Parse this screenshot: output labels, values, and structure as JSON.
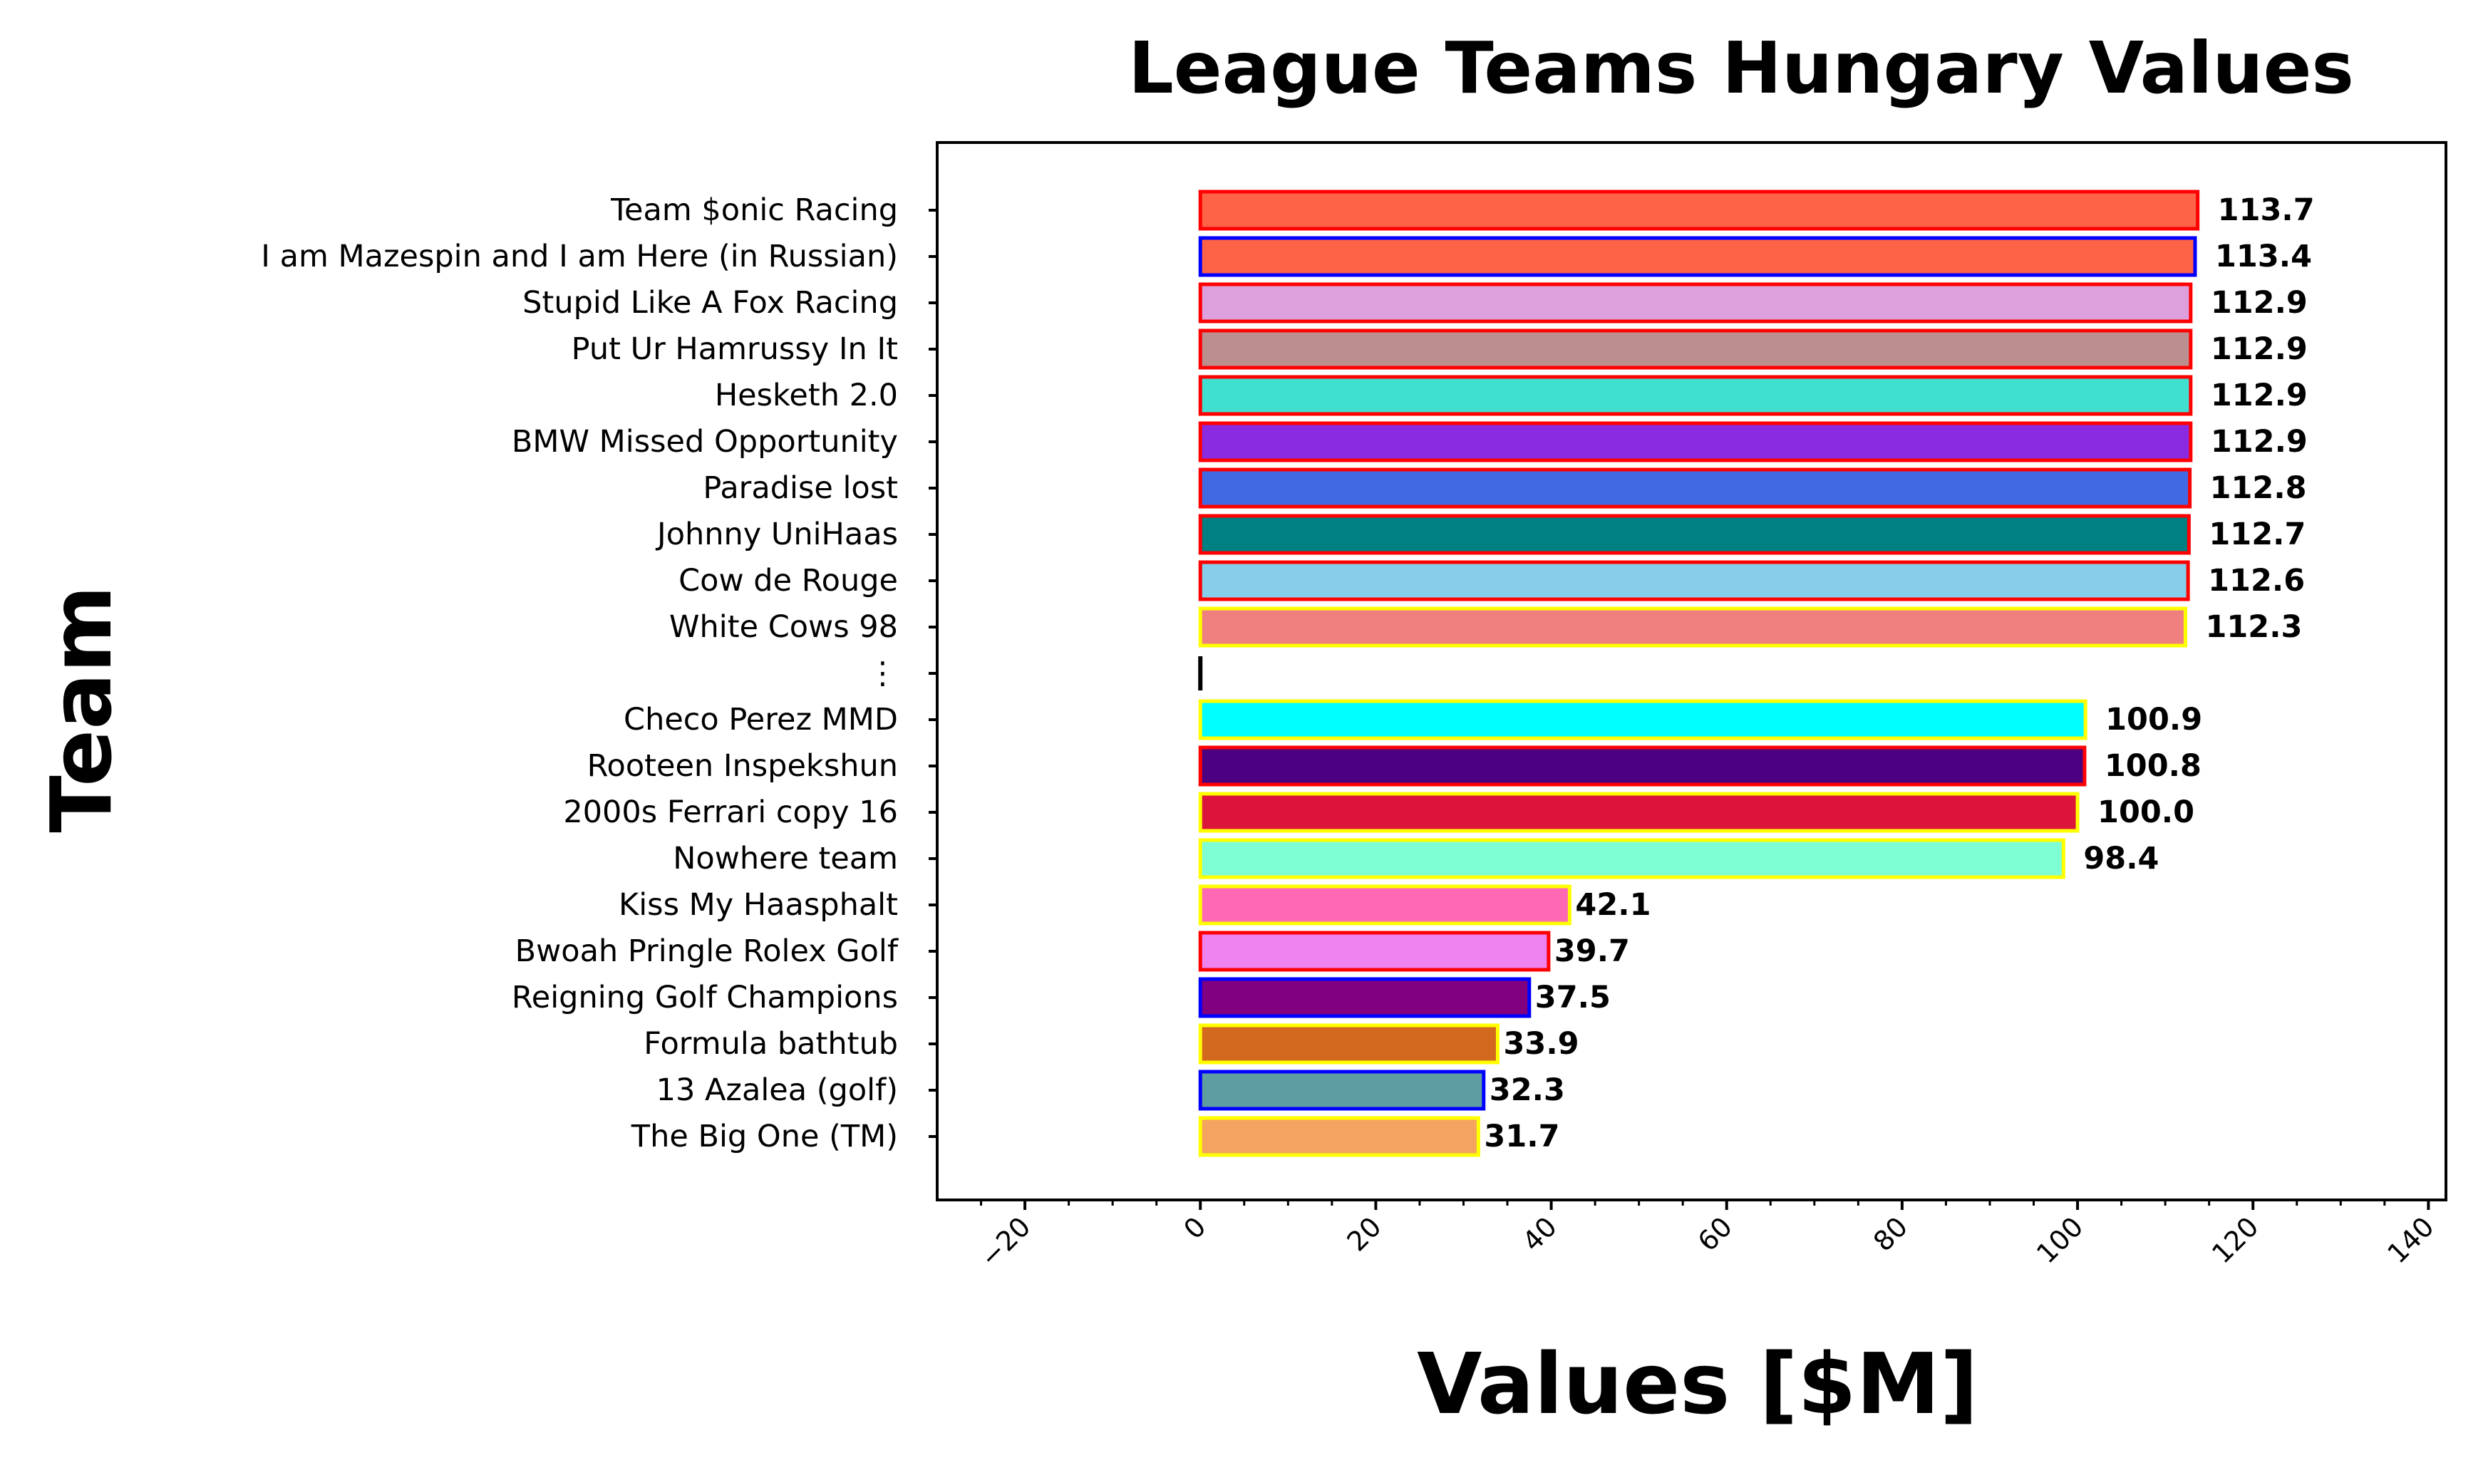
{
  "chart_data": {
    "type": "bar",
    "orientation": "horizontal",
    "title": "League Teams Hungary Values",
    "xlabel": "Values [$M]",
    "ylabel": "Team",
    "xlim": [
      -30,
      142
    ],
    "xticks": [
      -20,
      0,
      20,
      40,
      60,
      80,
      100,
      120,
      140
    ],
    "grid": false,
    "categories": [
      "Team $onic Racing",
      "I am Mazespin and I am Here (in Russian)",
      "Stupid Like A Fox Racing",
      "Put Ur Hamrussy In It",
      "Hesketh 2.0",
      "BMW Missed Opportunity",
      "Paradise lost",
      "Johnny UniHaas",
      "Cow de Rouge",
      "White Cows 98",
      "⋮",
      "Checo Perez MMD",
      "Rooteen Inspekshun",
      "2000s Ferrari copy 16",
      "Nowhere team",
      "Kiss My Haasphalt",
      "Bwoah Pringle Rolex Golf",
      "Reigning Golf Champions",
      "Formula bathtub",
      "13 Azalea (golf)",
      "The Big One (TM)"
    ],
    "values": [
      113.7,
      113.4,
      112.9,
      112.9,
      112.9,
      112.9,
      112.8,
      112.7,
      112.6,
      112.3,
      0,
      100.9,
      100.8,
      100.0,
      98.4,
      42.1,
      39.7,
      37.5,
      33.9,
      32.3,
      31.7
    ],
    "value_labels": [
      "113.7",
      "113.4",
      "112.9",
      "112.9",
      "112.9",
      "112.9",
      "112.8",
      "112.7",
      "112.6",
      "112.3",
      "",
      "100.9",
      "100.8",
      "100.0",
      "98.4",
      "42.1",
      "39.7",
      "37.5",
      "33.9",
      "32.3",
      "31.7"
    ],
    "fill_colors": [
      "#ff6347",
      "#ff6347",
      "#dda0dd",
      "#bc8f8f",
      "#40e0d0",
      "#8a2be2",
      "#4169e1",
      "#008080",
      "#87ceeb",
      "#f08080",
      "#000000",
      "#00ffff",
      "#4b0082",
      "#dc143c",
      "#7fffd4",
      "#ff69b4",
      "#ee82ee",
      "#800080",
      "#d2691e",
      "#5f9ea0",
      "#f4a460"
    ],
    "edge_colors": [
      "#ff0000",
      "#0000ff",
      "#ff0000",
      "#ff0000",
      "#ff0000",
      "#ff0000",
      "#ff0000",
      "#ff0000",
      "#ff0000",
      "#ffff00",
      "#000000",
      "#ffff00",
      "#ff0000",
      "#ffff00",
      "#ffff00",
      "#ffff00",
      "#ff0000",
      "#0000ff",
      "#ffff00",
      "#0000ff",
      "#ffff00"
    ]
  }
}
